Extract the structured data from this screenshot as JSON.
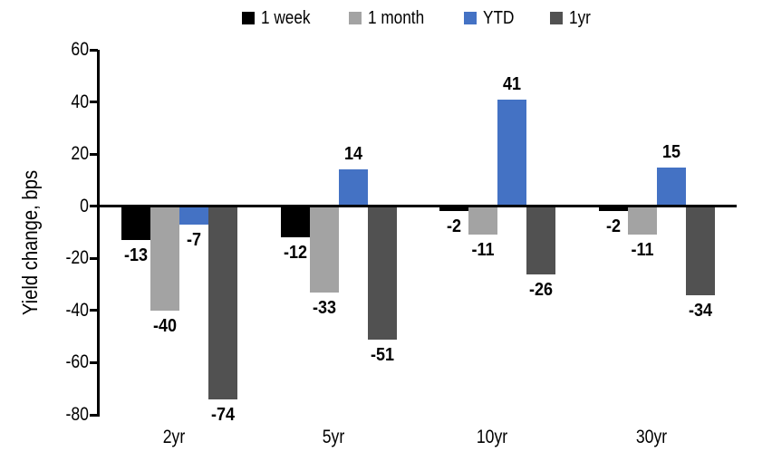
{
  "chart_data": {
    "type": "bar",
    "title": "",
    "ylabel": "Yield change, bps",
    "xlabel": "",
    "categories": [
      "2yr",
      "5yr",
      "10yr",
      "30yr"
    ],
    "series": [
      {
        "name": "1 week",
        "color": "#000000",
        "values": [
          -13,
          -12,
          -2,
          -2
        ]
      },
      {
        "name": "1 month",
        "color": "#A3A3A3",
        "values": [
          -40,
          -33,
          -11,
          -11
        ]
      },
      {
        "name": "YTD",
        "color": "#4472C4",
        "values": [
          -7,
          14,
          41,
          15
        ]
      },
      {
        "name": "1yr",
        "color": "#515151",
        "values": [
          -74,
          -51,
          -26,
          -34
        ]
      }
    ],
    "ylim": [
      -80,
      60
    ],
    "ytick_step": 20,
    "yticks": [
      60,
      40,
      20,
      0,
      -20,
      -40,
      -60,
      -80
    ],
    "grid": false,
    "legend_position": "top",
    "data_labels": true,
    "background": "#FFFFFF",
    "axis_color": "#000000"
  }
}
